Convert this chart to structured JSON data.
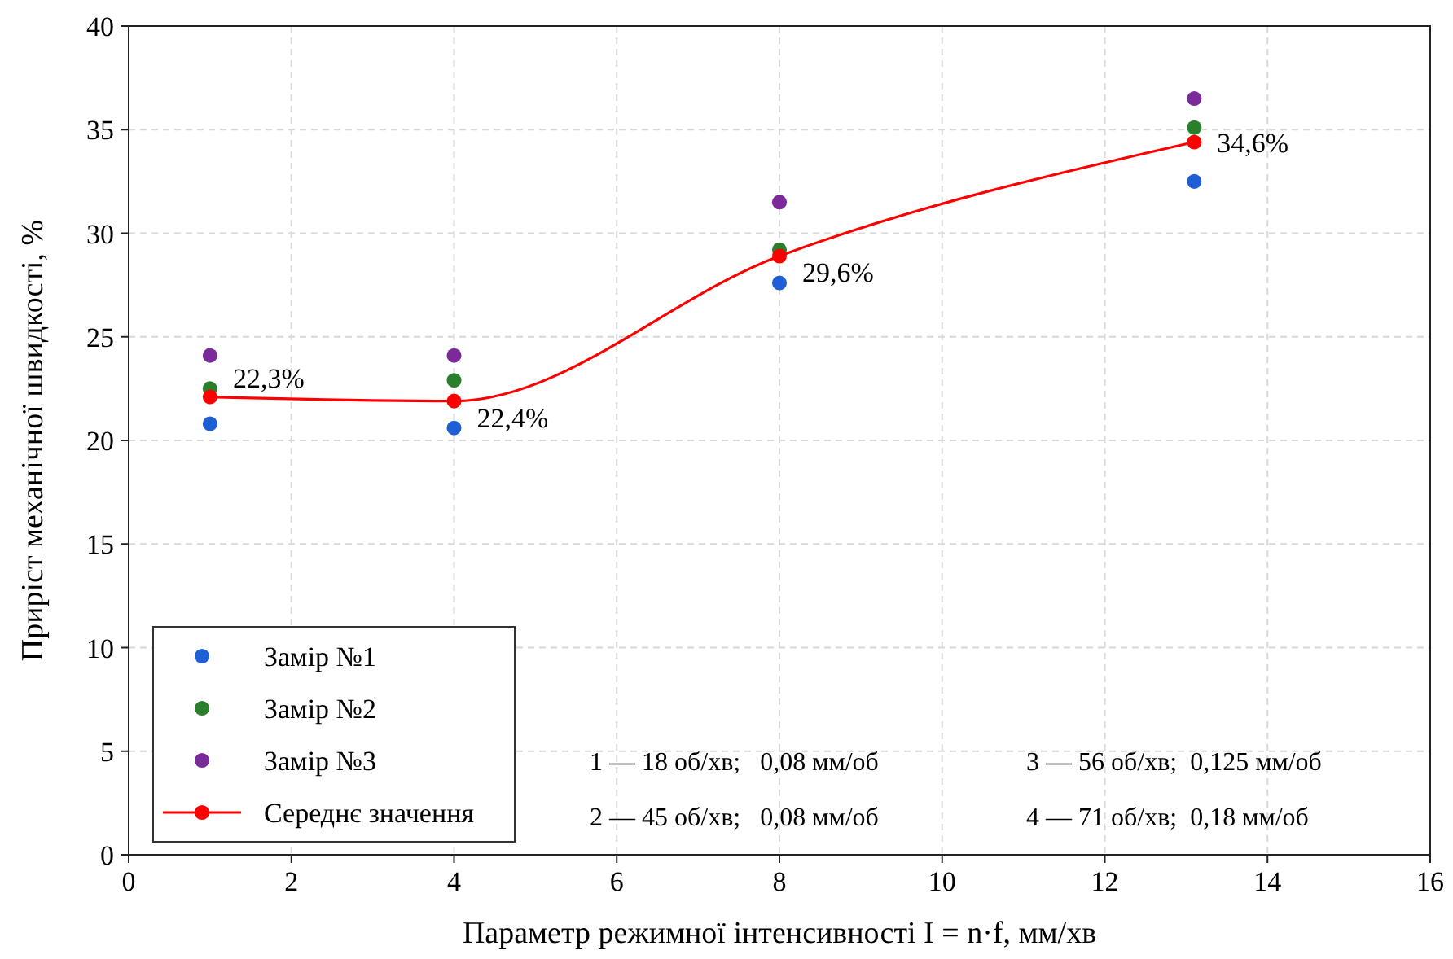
{
  "chart_data": {
    "type": "scatter",
    "xlabel": "Параметр режимної інтенсивності I = n·f, мм/хв",
    "ylabel": "Приріст механічної швидкості, %",
    "x": [
      1,
      4,
      8,
      13.1
    ],
    "series": [
      {
        "name": "Замір №1",
        "color": "#1f5fd6",
        "values": [
          20.8,
          20.6,
          27.6,
          32.5
        ]
      },
      {
        "name": "Замір №2",
        "color": "#2a7f2a",
        "values": [
          22.5,
          22.9,
          29.2,
          35.1
        ]
      },
      {
        "name": "Замір №3",
        "color": "#7b2a9a",
        "values": [
          24.1,
          24.1,
          31.5,
          36.5
        ]
      },
      {
        "name": "Середнє значення",
        "type": "line",
        "color": "#ff0000",
        "values": [
          22.1,
          21.9,
          28.9,
          34.4
        ]
      }
    ],
    "marker": "circle",
    "line_style": "solid",
    "xlim": [
      0,
      16
    ],
    "xticks": [
      0,
      2,
      4,
      6,
      8,
      10,
      12,
      14,
      16
    ],
    "ylim": [
      0,
      40
    ],
    "yticks": [
      0,
      5,
      10,
      15,
      20,
      25,
      30,
      35,
      40
    ],
    "grid": true,
    "legend": "bottom left",
    "annotations": [
      {
        "text": "22,3%",
        "x": 1,
        "y": 22.1
      },
      {
        "text": "22,4%",
        "x": 4,
        "y": 21.9
      },
      {
        "text": "29,6%",
        "x": 8,
        "y": 28.9
      },
      {
        "text": "34,6%",
        "x": 13.1,
        "y": 34.4
      },
      "1 — 18 об/хв;   0,08 мм/об",
      "2 — 45 об/хв;   0,08 мм/об",
      "3 — 56 об/хв;  0,125 мм/об",
      "4 — 71 об/хв;  0,18 мм/об"
    ]
  }
}
